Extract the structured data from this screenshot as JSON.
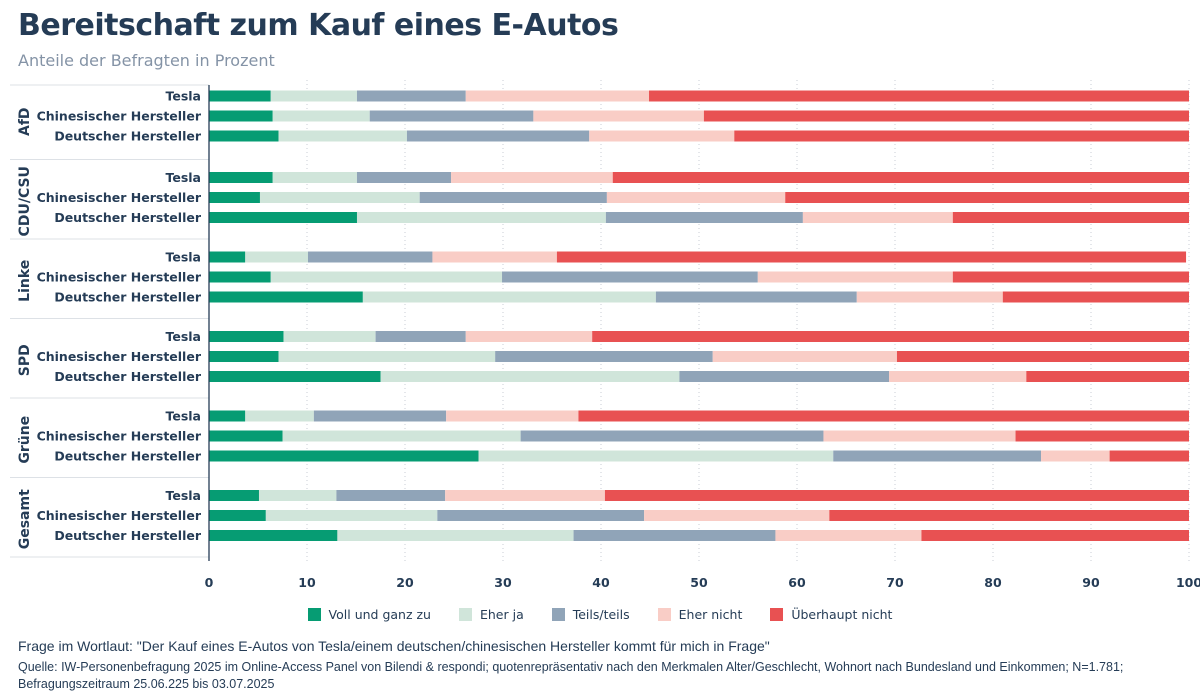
{
  "header": {
    "title": "Bereitschaft zum Kauf eines E-Autos",
    "subtitle": "Anteile der Befragten in Prozent"
  },
  "footer": {
    "question": "Frage im Wortlaut: \"Der Kauf eines E-Autos von Tesla/einem deutschen/chinesischen Hersteller kommt für mich in Frage\"",
    "source": "Quelle: IW-Personenbefragung 2025 im Online-Access Panel von Bilendi & respondi; quotenrepräsentativ nach den Merkmalen Alter/Geschlecht, Wohnort nach Bundesland und Einkommen; N=1.781; Befragungszeitraum 25.06.225 bis 03.07.2025"
  },
  "colors": {
    "title": "#253c56",
    "subtitle": "#8493a6",
    "series": [
      "#069c73",
      "#d0e5da",
      "#90a4b8",
      "#f9cdc6",
      "#e85152"
    ]
  },
  "chart_data": {
    "type": "bar",
    "orientation": "horizontal",
    "stacked": true,
    "title": "Bereitschaft zum Kauf eines E-Autos",
    "subtitle": "Anteile der Befragten in Prozent",
    "xlabel": "",
    "ylabel": "",
    "xlim": [
      0,
      100
    ],
    "xticks": [
      0,
      10,
      20,
      30,
      40,
      50,
      60,
      70,
      80,
      90,
      100
    ],
    "grid": "vertical dotted",
    "legend_position": "bottom",
    "series_names": [
      "Voll und ganz zu",
      "Eher ja",
      "Teils/teils",
      "Eher nicht",
      "Überhaupt nicht"
    ],
    "groups": [
      {
        "name": "AfD",
        "rows": [
          {
            "label": "Tesla",
            "values": [
              6.3,
              8.8,
              11.1,
              18.7,
              55.1
            ]
          },
          {
            "label": "Chinesischer Hersteller",
            "values": [
              6.5,
              9.9,
              16.7,
              17.4,
              49.5
            ]
          },
          {
            "label": "Deutscher Hersteller",
            "values": [
              7.1,
              13.1,
              18.6,
              14.8,
              46.4
            ]
          }
        ]
      },
      {
        "name": "CDU/CSU",
        "rows": [
          {
            "label": "Tesla",
            "values": [
              6.5,
              8.6,
              9.6,
              16.5,
              58.8
            ]
          },
          {
            "label": "Chinesischer Hersteller",
            "values": [
              5.2,
              16.3,
              19.1,
              18.2,
              41.2
            ]
          },
          {
            "label": "Deutscher Hersteller",
            "values": [
              15.1,
              25.4,
              20.1,
              15.3,
              24.1
            ]
          }
        ]
      },
      {
        "name": "Linke",
        "rows": [
          {
            "label": "Tesla",
            "values": [
              3.7,
              6.4,
              12.7,
              12.7,
              64.2
            ]
          },
          {
            "label": "Chinesischer Hersteller",
            "values": [
              6.3,
              23.6,
              26.1,
              19.9,
              24.1
            ]
          },
          {
            "label": "Deutscher Hersteller",
            "values": [
              15.7,
              29.9,
              20.5,
              14.9,
              19.0
            ]
          }
        ]
      },
      {
        "name": "SPD",
        "rows": [
          {
            "label": "Tesla",
            "values": [
              7.6,
              9.4,
              9.2,
              12.9,
              60.9
            ]
          },
          {
            "label": "Chinesischer Hersteller",
            "values": [
              7.1,
              22.1,
              22.2,
              18.8,
              29.8
            ]
          },
          {
            "label": "Deutscher Hersteller",
            "values": [
              17.5,
              30.5,
              21.4,
              14.0,
              16.6
            ]
          }
        ]
      },
      {
        "name": "Grüne",
        "rows": [
          {
            "label": "Tesla",
            "values": [
              3.7,
              7.0,
              13.5,
              13.5,
              62.3
            ]
          },
          {
            "label": "Chinesischer Hersteller",
            "values": [
              7.5,
              24.3,
              30.9,
              19.6,
              17.7
            ]
          },
          {
            "label": "Deutscher Hersteller",
            "values": [
              27.5,
              36.2,
              21.2,
              7.0,
              8.1
            ]
          }
        ]
      },
      {
        "name": "Gesamt",
        "rows": [
          {
            "label": "Tesla",
            "values": [
              5.1,
              7.9,
              11.1,
              16.3,
              59.6
            ]
          },
          {
            "label": "Chinesischer Hersteller",
            "values": [
              5.8,
              17.5,
              21.1,
              18.9,
              36.7
            ]
          },
          {
            "label": "Deutscher Hersteller",
            "values": [
              13.1,
              24.1,
              20.6,
              14.9,
              27.3
            ]
          }
        ]
      }
    ]
  }
}
